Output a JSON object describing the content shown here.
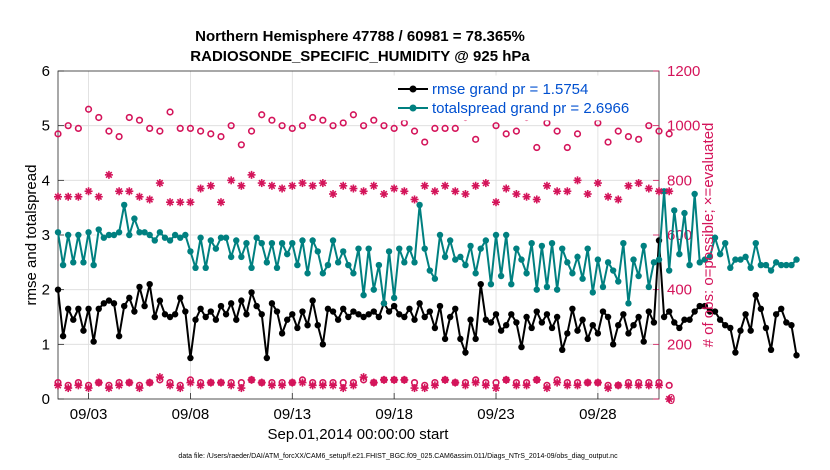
{
  "chart_data": {
    "type": "line",
    "title": "Northern Hemisphere 47788 / 60981 = 78.365%",
    "subtitle": "RADIOSONDE_SPECIFIC_HUMIDITY @ 925 hPa",
    "xlabel": "Sep.01,2014 00:00:00 start",
    "ylabel": "rmse and totalspread",
    "ylabel_right": "# of obs: o=possible; ×=evaluated",
    "footnote": "data file: /Users/raeder/DAI/ATM_forcXX/CAM6_setup/f.e21.FHIST_BGC.f09_025.CAM6assim.011/Diags_NTrS_2014-09/obs_diag_output.nc",
    "xlim": [
      1.5,
      31.0
    ],
    "ylim": [
      0,
      6
    ],
    "ylim_right": [
      0,
      1200
    ],
    "x_ticks": [
      3,
      8,
      13,
      18,
      23,
      28
    ],
    "x_tick_labels": [
      "09/03",
      "09/08",
      "09/13",
      "09/18",
      "09/23",
      "09/28"
    ],
    "y_ticks": [
      0,
      1,
      2,
      3,
      4,
      5,
      6
    ],
    "y_ticks_right": [
      0,
      200,
      400,
      600,
      800,
      1000,
      1200
    ],
    "grid": true,
    "legend_placement": "top-right",
    "colors": {
      "rmse": "#000000",
      "spread": "#008080",
      "counts": "#d4145a",
      "legend_text": "#0050d0"
    },
    "series": [
      {
        "name": "rmse grand pr = 1.5754",
        "axis": "left",
        "marker": "filled-circle",
        "x_start": 1.5,
        "x_step": 0.25,
        "values": [
          2.0,
          1.15,
          1.65,
          1.45,
          1.65,
          1.25,
          1.65,
          1.05,
          1.65,
          1.75,
          1.8,
          1.75,
          1.15,
          1.7,
          1.85,
          1.6,
          2.05,
          1.7,
          2.1,
          1.5,
          1.8,
          1.55,
          1.5,
          1.55,
          1.85,
          1.6,
          0.75,
          1.45,
          1.65,
          1.5,
          1.6,
          1.45,
          1.7,
          1.55,
          1.75,
          1.45,
          1.8,
          1.55,
          1.95,
          1.7,
          1.55,
          0.75,
          1.75,
          1.6,
          1.2,
          1.45,
          1.55,
          1.3,
          1.6,
          1.35,
          1.8,
          1.35,
          1.0,
          1.65,
          1.6,
          1.45,
          1.65,
          1.5,
          1.6,
          1.55,
          1.5,
          1.55,
          1.6,
          1.5,
          1.75,
          1.6,
          1.7,
          1.55,
          1.5,
          1.65,
          1.45,
          1.75,
          1.5,
          1.6,
          1.3,
          1.7,
          1.1,
          1.5,
          1.65,
          1.1,
          0.85,
          1.45,
          1.1,
          2.1,
          1.45,
          1.4,
          1.55,
          1.25,
          1.35,
          1.55,
          1.4,
          0.95,
          1.5,
          1.3,
          1.6,
          1.4,
          1.55,
          1.3,
          1.5,
          0.9,
          1.2,
          1.65,
          1.25,
          1.45,
          1.1,
          1.35,
          1.2,
          1.6,
          1.5,
          1.0,
          1.35,
          1.55,
          1.2,
          1.35,
          1.5,
          1.05,
          1.6,
          1.4,
          2.9,
          1.5,
          1.6,
          1.4,
          1.3,
          1.45,
          1.45,
          1.6,
          1.7,
          1.7,
          1.6,
          1.6,
          1.45,
          1.35,
          1.3,
          0.85,
          1.25,
          1.55,
          1.25,
          1.9,
          1.65,
          1.3,
          0.9,
          1.55,
          1.65,
          1.4,
          1.35,
          0.8
        ]
      },
      {
        "name": "totalspread grand pr = 2.6966",
        "axis": "left",
        "marker": "filled-circle",
        "x_start": 1.5,
        "x_step": 0.25,
        "values": [
          3.05,
          2.45,
          3.0,
          2.5,
          3.0,
          2.5,
          3.05,
          2.45,
          3.1,
          2.95,
          3.0,
          3.0,
          3.05,
          3.55,
          3.0,
          3.3,
          3.05,
          3.05,
          3.0,
          2.9,
          3.05,
          2.95,
          2.9,
          3.0,
          2.95,
          3.0,
          2.7,
          2.4,
          2.95,
          2.4,
          2.9,
          2.75,
          2.95,
          2.95,
          2.6,
          2.9,
          2.6,
          2.85,
          2.4,
          2.95,
          2.85,
          2.5,
          2.85,
          2.4,
          2.85,
          2.65,
          2.85,
          2.45,
          2.9,
          2.3,
          2.9,
          2.7,
          2.3,
          2.45,
          2.9,
          2.5,
          2.7,
          2.45,
          2.3,
          2.75,
          1.9,
          2.75,
          2.0,
          2.45,
          1.75,
          2.7,
          1.85,
          2.75,
          2.5,
          2.75,
          2.5,
          3.55,
          2.75,
          2.35,
          2.2,
          3.0,
          2.6,
          2.9,
          2.55,
          2.6,
          2.45,
          2.8,
          2.3,
          2.75,
          2.9,
          2.1,
          3.0,
          2.25,
          3.0,
          2.1,
          2.75,
          2.55,
          2.3,
          2.85,
          2.0,
          2.8,
          2.05,
          2.85,
          2.0,
          2.75,
          2.5,
          2.3,
          2.6,
          2.2,
          2.75,
          1.95,
          2.55,
          2.05,
          2.5,
          2.35,
          2.15,
          2.85,
          1.75,
          2.55,
          2.25,
          2.8,
          2.05,
          2.5,
          2.55,
          3.8,
          2.35,
          3.45,
          2.65,
          3.4,
          2.45,
          3.75,
          2.5,
          2.55,
          2.6,
          2.95,
          2.65,
          2.85,
          2.4,
          2.55,
          2.55,
          2.6,
          2.4,
          2.85,
          2.45,
          2.45,
          2.35,
          2.5,
          2.45,
          2.45,
          2.45,
          2.55
        ]
      },
      {
        "name": "possible (upper)",
        "axis": "right",
        "marker": "open-circle",
        "x_start": 1.5,
        "x_step": 0.5,
        "values": [
          970,
          1000,
          990,
          1060,
          1030,
          980,
          960,
          1030,
          1020,
          990,
          980,
          1050,
          990,
          990,
          980,
          970,
          960,
          1000,
          930,
          980,
          1040,
          1020,
          1000,
          990,
          1000,
          1030,
          1020,
          1000,
          1010,
          1040,
          1000,
          1020,
          1000,
          990,
          1010,
          980,
          940,
          990,
          990,
          990,
          1030,
          950,
          1050,
          1000,
          970,
          980,
          1030,
          920,
          1010,
          980,
          920,
          970,
          1050,
          1010,
          940,
          980,
          960,
          950,
          1000,
          980,
          970
        ]
      },
      {
        "name": "evaluated (upper)",
        "axis": "right",
        "marker": "asterisk",
        "x_start": 1.5,
        "x_step": 0.5,
        "values": [
          740,
          740,
          740,
          760,
          740,
          820,
          760,
          760,
          740,
          730,
          790,
          720,
          720,
          720,
          770,
          780,
          720,
          800,
          780,
          820,
          790,
          780,
          770,
          780,
          790,
          780,
          790,
          750,
          780,
          770,
          760,
          780,
          750,
          770,
          760,
          730,
          780,
          760,
          780,
          760,
          750,
          780,
          790,
          720,
          770,
          750,
          740,
          730,
          780,
          760,
          760,
          800,
          750,
          790,
          740,
          730,
          780,
          790,
          770,
          760,
          760
        ]
      },
      {
        "name": "possible (lower)",
        "axis": "right",
        "marker": "open-circle",
        "x_start": 1.5,
        "x_step": 0.5,
        "values": [
          60,
          50,
          60,
          50,
          60,
          50,
          60,
          60,
          50,
          60,
          70,
          60,
          50,
          70,
          60,
          60,
          60,
          60,
          60,
          70,
          60,
          60,
          60,
          60,
          70,
          60,
          60,
          60,
          60,
          60,
          70,
          60,
          70,
          70,
          70,
          60,
          50,
          60,
          70,
          60,
          60,
          70,
          60,
          60,
          70,
          60,
          60,
          70,
          50,
          70,
          60,
          60,
          60,
          60,
          50,
          50,
          60,
          60,
          60,
          60,
          50
        ]
      },
      {
        "name": "evaluated (lower)",
        "axis": "right",
        "marker": "asterisk",
        "x_start": 1.5,
        "x_step": 0.5,
        "values": [
          50,
          40,
          50,
          40,
          60,
          40,
          50,
          60,
          40,
          60,
          80,
          50,
          40,
          60,
          50,
          60,
          60,
          50,
          40,
          70,
          60,
          50,
          50,
          60,
          60,
          50,
          50,
          50,
          40,
          50,
          80,
          60,
          70,
          70,
          70,
          40,
          40,
          50,
          70,
          60,
          50,
          60,
          50,
          40,
          70,
          50,
          50,
          70,
          40,
          60,
          50,
          50,
          60,
          60,
          40,
          50,
          50,
          50,
          50,
          50,
          0
        ]
      }
    ]
  }
}
